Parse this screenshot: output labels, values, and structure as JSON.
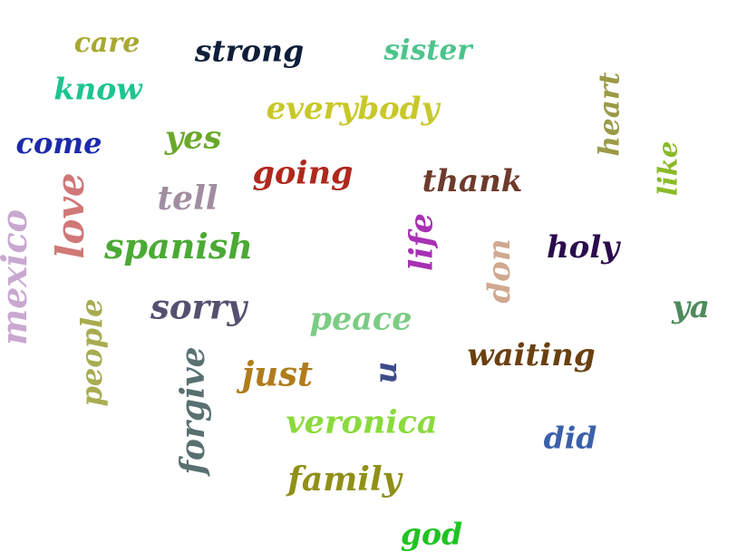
{
  "words": [
    {
      "text": "care",
      "color": "#a8a832"
    },
    {
      "text": "strong",
      "color": "#0e1e3a"
    },
    {
      "text": "sister",
      "color": "#4cc48c"
    },
    {
      "text": "know",
      "color": "#1ec490"
    },
    {
      "text": "everybody",
      "color": "#c8c82a"
    },
    {
      "text": "heart",
      "color": "#9a9a48"
    },
    {
      "text": "come",
      "color": "#1c2aac"
    },
    {
      "text": "yes",
      "color": "#6aa82a"
    },
    {
      "text": "going",
      "color": "#b0281c"
    },
    {
      "text": "thank",
      "color": "#6e3a2c"
    },
    {
      "text": "like",
      "color": "#8aba28"
    },
    {
      "text": "love",
      "color": "#d07878"
    },
    {
      "text": "tell",
      "color": "#a08ea0"
    },
    {
      "text": "mexico",
      "color": "#c8a8d0"
    },
    {
      "text": "spanish",
      "color": "#4aaa34"
    },
    {
      "text": "life",
      "color": "#a830b4"
    },
    {
      "text": "don",
      "color": "#d0a890"
    },
    {
      "text": "holy",
      "color": "#2a0c4c"
    },
    {
      "text": "sorry",
      "color": "#545070"
    },
    {
      "text": "peace",
      "color": "#7ccc84"
    },
    {
      "text": "ya",
      "color": "#4e8a5a"
    },
    {
      "text": "people",
      "color": "#a8ac50"
    },
    {
      "text": "just",
      "color": "#b07c1c"
    },
    {
      "text": "u",
      "color": "#3c4c8a"
    },
    {
      "text": "waiting",
      "color": "#6a4010"
    },
    {
      "text": "forgive",
      "color": "#587070"
    },
    {
      "text": "veronica",
      "color": "#8ada3c"
    },
    {
      "text": "did",
      "color": "#3a60aa"
    },
    {
      "text": "family",
      "color": "#909018"
    },
    {
      "text": "god",
      "color": "#1ec420"
    }
  ]
}
